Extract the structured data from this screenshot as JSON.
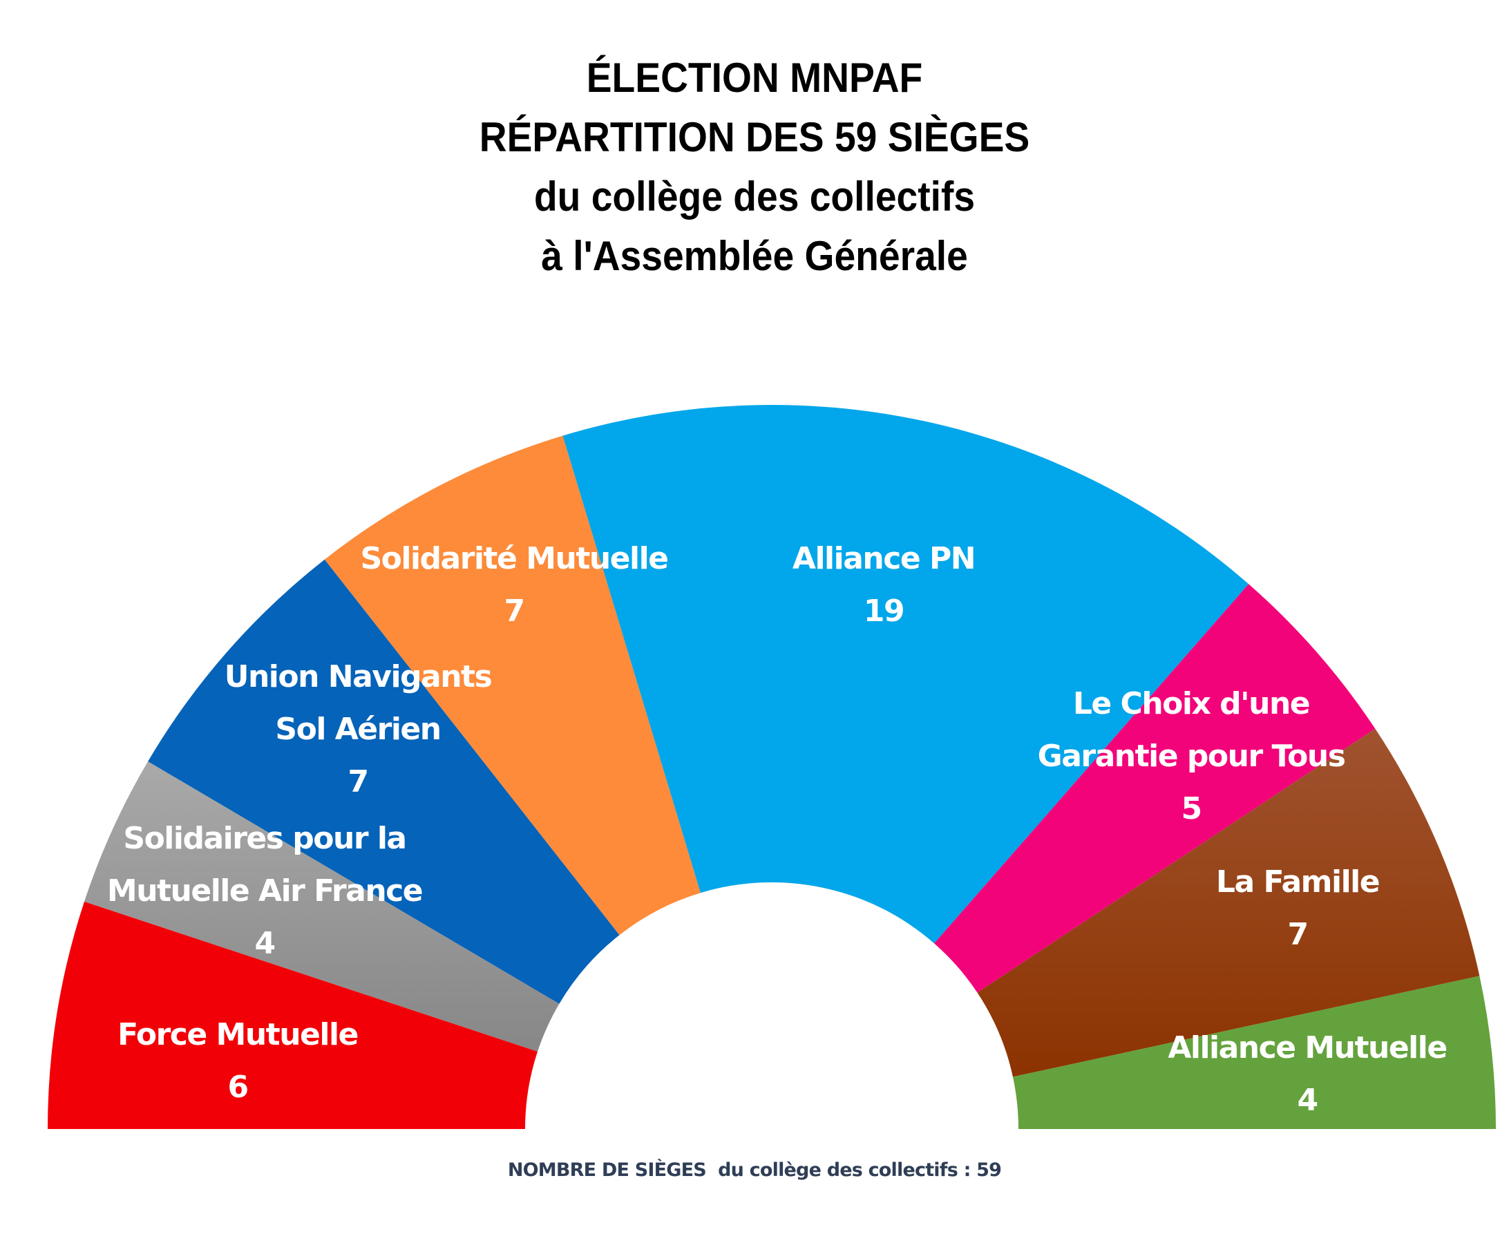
{
  "chart_data": {
    "type": "pie",
    "subtype": "parliament-semicircle",
    "title": [
      "ÉLECTION MNPAF",
      "RÉPARTITION DES 59 SIÈGES",
      "du collège des collectifs",
      "à l'Assemblée Générale"
    ],
    "total": 59,
    "footer": "NOMBRE DE SIÈGES  du collège des collectifs : 59",
    "series": [
      {
        "name": "Force Mutuelle",
        "label_lines": [
          "Force Mutuelle"
        ],
        "value": 6,
        "color": "#f20008",
        "color2": "#f20008"
      },
      {
        "name": "Solidaires pour la Mutuelle Air France",
        "label_lines": [
          "Solidaires pour la",
          "Mutuelle Air France"
        ],
        "value": 4,
        "color": "#a9a9a9",
        "color2": "#878787"
      },
      {
        "name": "Union Navigants Sol Aérien",
        "label_lines": [
          "Union Navigants",
          "Sol Aérien"
        ],
        "value": 7,
        "color": "#0563b9",
        "color2": "#0563b9"
      },
      {
        "name": "Solidarité Mutuelle",
        "label_lines": [
          "Solidarité Mutuelle"
        ],
        "value": 7,
        "color": "#fd8b3a",
        "color2": "#fd8b3a"
      },
      {
        "name": "Alliance PN",
        "label_lines": [
          "Alliance PN"
        ],
        "value": 19,
        "color": "#02a6ea",
        "color2": "#02a6ea"
      },
      {
        "name": "Le Choix d'une Garantie pour Tous",
        "label_lines": [
          "Le Choix d'une",
          "Garantie pour Tous"
        ],
        "value": 5,
        "color": "#f3037a",
        "color2": "#f3037a"
      },
      {
        "name": "La Famille",
        "label_lines": [
          "La Famille"
        ],
        "value": 7,
        "color": "#a0532f",
        "color2": "#8c3300"
      },
      {
        "name": "Alliance Mutuelle",
        "label_lines": [
          "Alliance Mutuelle"
        ],
        "value": 4,
        "color": "#64a23d",
        "color2": "#64a23d"
      }
    ]
  }
}
